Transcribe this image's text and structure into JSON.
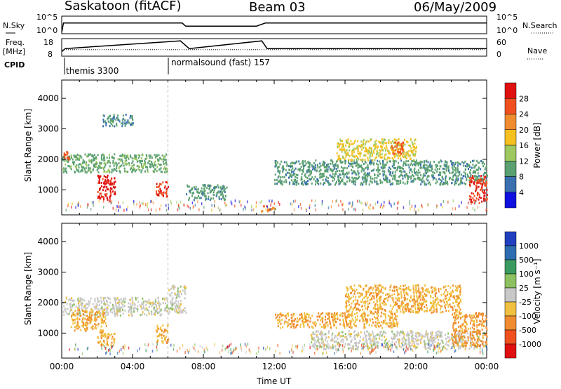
{
  "header": {
    "station": "Saskatoon (fitACF)",
    "beam": "Beam 03",
    "date": "06/May/2009"
  },
  "panels": {
    "nsky_label": "N.Sky",
    "nsearch_label": "N.Search",
    "freq_label": "Freq.",
    "freq_unit": "[MHz]",
    "nave_label": "Nave",
    "cpid_label": "CPID",
    "nsky_ticks": [
      "10^5",
      "10^0"
    ],
    "nsearch_ticks": [
      "10^5",
      "10^0"
    ],
    "freq_ticks": [
      "18",
      "8"
    ],
    "nave_ticks": [
      "60",
      "0"
    ]
  },
  "cpid": [
    {
      "name": "themis 3300"
    },
    {
      "name": "normalsound (fast) 157"
    }
  ],
  "axes": {
    "ylabel": "Slant Range [km]",
    "xlabel": "Time UT",
    "yticks": [
      "4000",
      "3000",
      "2000",
      "1000"
    ],
    "xticks": [
      "00:00",
      "04:00",
      "08:00",
      "12:00",
      "16:00",
      "20:00",
      "00:00"
    ]
  },
  "colorbars": {
    "power": {
      "label": "Power [dB]",
      "ticks": [
        "28",
        "24",
        "20",
        "16",
        "12",
        "8",
        "4"
      ],
      "colors": [
        "#e01010",
        "#f05020",
        "#f08c30",
        "#f5c020",
        "#9ec860",
        "#5aa070",
        "#3a70b0",
        "#1010e0"
      ]
    },
    "velocity": {
      "label": "Velocity [m s⁻¹]",
      "ticks": [
        "1000",
        "500",
        "100",
        "25",
        "-25",
        "-100",
        "-500",
        "-1000"
      ],
      "colors": [
        "#2040c0",
        "#2e6eb0",
        "#3a9a60",
        "#8cc060",
        "#c8c8c8",
        "#f0c040",
        "#f08c30",
        "#f05020",
        "#e01010"
      ]
    }
  },
  "chart_data": [
    {
      "type": "line",
      "title": "Saskatoon (fitACF) Beam 03 06/May/2009",
      "xlabel": "Time UT",
      "ylabel": "N.Sky / N.Search",
      "series": [
        {
          "name": "N.Sky",
          "x": [
            0,
            0.1,
            0.5,
            6.8,
            7.0,
            9.0,
            11.0,
            11.5,
            24
          ],
          "y": [
            1,
            1000,
            1000,
            1000,
            100,
            100,
            100,
            1000,
            1000
          ]
        }
      ]
    },
    {
      "type": "line",
      "xlabel": "Time UT",
      "ylabel": "Freq. [MHz] / Nave",
      "series": [
        {
          "name": "Freq.",
          "x": [
            0,
            0.2,
            6.7,
            7.2,
            11.3,
            11.6,
            24
          ],
          "y": [
            10,
            12,
            17,
            12,
            17,
            12,
            12
          ]
        },
        {
          "name": "Nave",
          "x": [
            0,
            24
          ],
          "y": [
            20,
            20
          ]
        }
      ]
    },
    {
      "type": "heatmap",
      "xlabel": "Time UT",
      "ylabel": "Slant Range [km]",
      "colorbar": "Power [dB]",
      "xlim": [
        0,
        24
      ],
      "ylim": [
        180,
        4600
      ],
      "zlim": [
        0,
        30
      ],
      "blobs": [
        {
          "x": [
            0,
            6
          ],
          "y": [
            1600,
            2200
          ],
          "v": 10
        },
        {
          "x": [
            2,
            3
          ],
          "y": [
            700,
            1500
          ],
          "v": 28
        },
        {
          "x": [
            5.3,
            6
          ],
          "y": [
            800,
            1300
          ],
          "v": 26
        },
        {
          "x": [
            0.1,
            0.4
          ],
          "y": [
            2000,
            2300
          ],
          "v": 24
        },
        {
          "x": [
            2.3,
            4
          ],
          "y": [
            3100,
            3500
          ],
          "v": 8
        },
        {
          "x": [
            7,
            9.3
          ],
          "y": [
            700,
            1200
          ],
          "v": 9
        },
        {
          "x": [
            11.2,
            12
          ],
          "y": [
            300,
            500
          ],
          "v": 22
        },
        {
          "x": [
            12,
            24
          ],
          "y": [
            1200,
            2000
          ],
          "v": 9
        },
        {
          "x": [
            15.5,
            20
          ],
          "y": [
            2000,
            2700
          ],
          "v": 16
        },
        {
          "x": [
            18.5,
            19.3
          ],
          "y": [
            2200,
            2600
          ],
          "v": 24
        },
        {
          "x": [
            23,
            24
          ],
          "y": [
            600,
            1500
          ],
          "v": 26
        }
      ]
    },
    {
      "type": "heatmap",
      "xlabel": "Time UT",
      "ylabel": "Slant Range [km]",
      "colorbar": "Velocity [m s⁻¹]",
      "xlim": [
        0,
        24
      ],
      "ylim": [
        180,
        4600
      ],
      "zlim": [
        -1000,
        1000
      ],
      "blobs": [
        {
          "x": [
            0,
            6
          ],
          "y": [
            1600,
            2200
          ],
          "v": 0
        },
        {
          "x": [
            0.5,
            2.5
          ],
          "y": [
            1100,
            1800
          ],
          "v": -300
        },
        {
          "x": [
            2,
            3
          ],
          "y": [
            600,
            1100
          ],
          "v": -300
        },
        {
          "x": [
            5.3,
            6
          ],
          "y": [
            700,
            1300
          ],
          "v": -300
        },
        {
          "x": [
            6,
            7
          ],
          "y": [
            1700,
            2600
          ],
          "v": 0
        },
        {
          "x": [
            12,
            19
          ],
          "y": [
            1200,
            1700
          ],
          "v": -300
        },
        {
          "x": [
            16,
            22.5
          ],
          "y": [
            1700,
            2600
          ],
          "v": -300
        },
        {
          "x": [
            14,
            24
          ],
          "y": [
            500,
            1100
          ],
          "v": 0
        },
        {
          "x": [
            22,
            24
          ],
          "y": [
            600,
            1700
          ],
          "v": -400
        }
      ]
    }
  ]
}
